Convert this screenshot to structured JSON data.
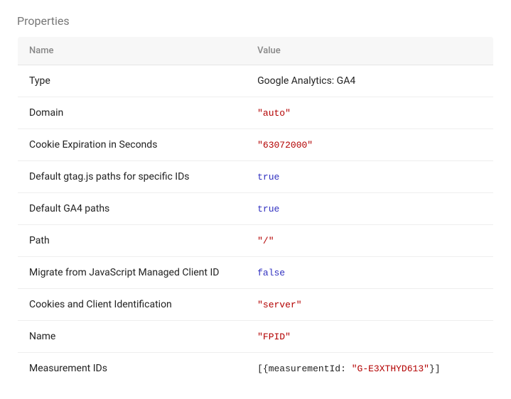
{
  "section_title": "Properties",
  "columns": {
    "name": "Name",
    "value": "Value"
  },
  "rows": [
    {
      "name": "Type",
      "value_tokens": [
        {
          "t": "Google Analytics: GA4",
          "k": "plain"
        }
      ]
    },
    {
      "name": "Domain",
      "value_tokens": [
        {
          "t": "\"auto\"",
          "k": "str"
        }
      ]
    },
    {
      "name": "Cookie Expiration in Seconds",
      "value_tokens": [
        {
          "t": "\"63072000\"",
          "k": "str"
        }
      ]
    },
    {
      "name": "Default gtag.js paths for specific IDs",
      "value_tokens": [
        {
          "t": "true",
          "k": "bool"
        }
      ]
    },
    {
      "name": "Default GA4 paths",
      "value_tokens": [
        {
          "t": "true",
          "k": "bool"
        }
      ]
    },
    {
      "name": "Path",
      "value_tokens": [
        {
          "t": "\"/\"",
          "k": "str"
        }
      ]
    },
    {
      "name": "Migrate from JavaScript Managed Client ID",
      "value_tokens": [
        {
          "t": "false",
          "k": "bool"
        }
      ]
    },
    {
      "name": "Cookies and Client Identification",
      "value_tokens": [
        {
          "t": "\"server\"",
          "k": "str"
        }
      ]
    },
    {
      "name": "Name",
      "value_tokens": [
        {
          "t": "\"FPID\"",
          "k": "str"
        }
      ]
    },
    {
      "name": "Measurement IDs",
      "value_tokens": [
        {
          "t": "[{measurementId: ",
          "k": "plain"
        },
        {
          "t": "\"G-E3XTHYD613\"",
          "k": "str"
        },
        {
          "t": "}]",
          "k": "plain"
        }
      ]
    }
  ]
}
